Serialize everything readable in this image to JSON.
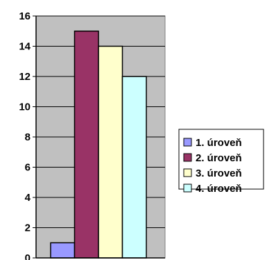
{
  "chart_data": {
    "type": "bar",
    "title": "",
    "xlabel": "",
    "ylabel": "",
    "ylim": [
      0,
      16
    ],
    "ytick_step": 2,
    "grid": true,
    "legend_position": "right",
    "categories": [
      ""
    ],
    "series": [
      {
        "name": "1. úroveň",
        "values": [
          1
        ],
        "color": "#9999ff"
      },
      {
        "name": "2. úroveň",
        "values": [
          15
        ],
        "color": "#993366"
      },
      {
        "name": "3. úroveň",
        "values": [
          14
        ],
        "color": "#ffffcc"
      },
      {
        "name": "4. úroveň",
        "values": [
          12
        ],
        "color": "#ccffff"
      }
    ],
    "plot_background": "#c0c0c0"
  }
}
